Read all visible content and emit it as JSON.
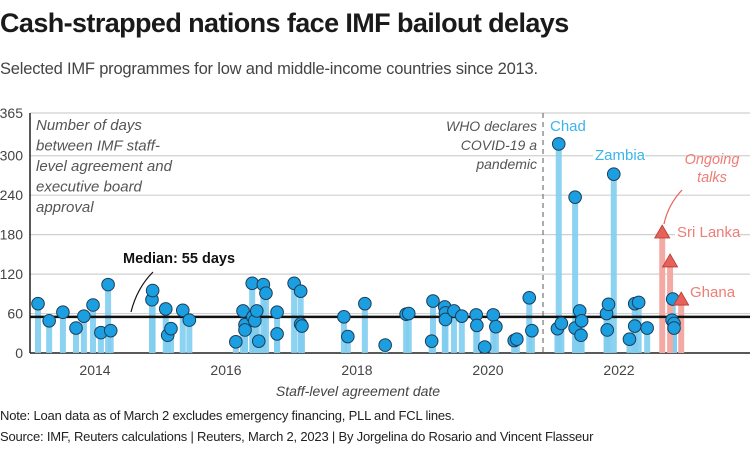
{
  "header": {
    "title": "Cash-strapped nations face IMF bailout delays",
    "subtitle": "Selected IMF programmes for low and middle-income countries since 2013."
  },
  "footer": {
    "note": "Note: Loan data as of March 2 excludes emergency financing, PLL and FCL lines.",
    "source": "Source: IMF, Reuters calculations | Reuters, March 2, 2023 | By Jorgelina do Rosario and Vincent Flasseur"
  },
  "chart_data": {
    "type": "scatter",
    "xlabel": "Staff-level agreement date",
    "ylabel_lines": [
      "Number of days",
      "between IMF staff-",
      "level agreement and",
      "executive board",
      "approval"
    ],
    "ylim": [
      0,
      365
    ],
    "yticks": [
      0,
      60,
      120,
      180,
      240,
      300,
      365
    ],
    "xticks": [
      2014,
      2016,
      2018,
      2020,
      2022
    ],
    "grid": true,
    "colors": {
      "completed_bar": "#7fcdf0",
      "completed_dot": "#1c9fe0",
      "ongoing": "#e8605a",
      "ongoing_bar": "#f3aaa5",
      "median": "#111111"
    },
    "median": {
      "value": 55,
      "label": "Median: 55 days"
    },
    "event_line": {
      "x": 2020.84,
      "label_lines": [
        "WHO declares",
        "COVID-19 a",
        "pandemic"
      ]
    },
    "annotations": {
      "chad": "Chad",
      "zambia": "Zambia",
      "sri_lanka": "Sri Lanka",
      "ghana": "Ghana",
      "ongoing_lines": [
        "Ongoing",
        "talks"
      ]
    },
    "completed": [
      [
        2013.13,
        75
      ],
      [
        2013.3,
        49
      ],
      [
        2013.51,
        62
      ],
      [
        2013.71,
        38
      ],
      [
        2013.83,
        56
      ],
      [
        2013.97,
        73
      ],
      [
        2014.09,
        31
      ],
      [
        2014.2,
        104
      ],
      [
        2014.24,
        34
      ],
      [
        2014.87,
        81
      ],
      [
        2014.88,
        95
      ],
      [
        2015.08,
        67
      ],
      [
        2015.11,
        27
      ],
      [
        2015.16,
        37
      ],
      [
        2015.34,
        65
      ],
      [
        2015.44,
        50
      ],
      [
        2016.15,
        17
      ],
      [
        2016.26,
        64
      ],
      [
        2016.29,
        43
      ],
      [
        2016.29,
        35
      ],
      [
        2016.4,
        106
      ],
      [
        2016.41,
        55
      ],
      [
        2016.44,
        49
      ],
      [
        2016.47,
        64
      ],
      [
        2016.5,
        18
      ],
      [
        2016.57,
        104
      ],
      [
        2016.61,
        91
      ],
      [
        2016.78,
        62
      ],
      [
        2016.78,
        29
      ],
      [
        2017.04,
        106
      ],
      [
        2017.14,
        94
      ],
      [
        2017.14,
        44
      ],
      [
        2017.16,
        41
      ],
      [
        2017.8,
        55
      ],
      [
        2017.86,
        25
      ],
      [
        2018.12,
        75
      ],
      [
        2018.43,
        12
      ],
      [
        2018.75,
        59
      ],
      [
        2018.79,
        60
      ],
      [
        2019.16,
        79
      ],
      [
        2019.14,
        18
      ],
      [
        2019.34,
        70
      ],
      [
        2019.35,
        61
      ],
      [
        2019.35,
        51
      ],
      [
        2019.48,
        64
      ],
      [
        2019.6,
        56
      ],
      [
        2019.82,
        58
      ],
      [
        2019.83,
        42
      ],
      [
        2019.95,
        9
      ],
      [
        2020.08,
        58
      ],
      [
        2020.12,
        40
      ],
      [
        2020.4,
        19
      ],
      [
        2020.44,
        21
      ],
      [
        2020.63,
        84
      ],
      [
        2020.67,
        34
      ],
      [
        2021.08,
        318
      ],
      [
        2021.06,
        37
      ],
      [
        2021.12,
        45
      ],
      [
        2021.33,
        237
      ],
      [
        2021.33,
        38
      ],
      [
        2021.4,
        64
      ],
      [
        2021.43,
        49
      ],
      [
        2021.42,
        27
      ],
      [
        2021.92,
        272
      ],
      [
        2021.81,
        60
      ],
      [
        2021.84,
        74
      ],
      [
        2021.82,
        35
      ],
      [
        2022.16,
        21
      ],
      [
        2022.24,
        75
      ],
      [
        2022.3,
        77
      ],
      [
        2022.24,
        41
      ],
      [
        2022.43,
        38
      ],
      [
        2022.82,
        82
      ],
      [
        2022.81,
        50
      ],
      [
        2022.84,
        45
      ],
      [
        2022.84,
        38
      ]
    ],
    "ongoing": [
      [
        2022.66,
        184
      ],
      [
        2022.78,
        140
      ],
      [
        2022.95,
        82
      ]
    ]
  }
}
